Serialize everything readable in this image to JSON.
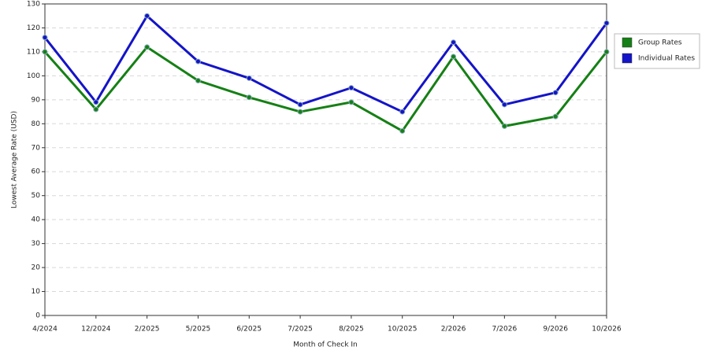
{
  "chart_data": {
    "type": "line",
    "x_label": "Month of Check In",
    "y_label": "Lowest Average Rate (USD)",
    "categories": [
      "4/2024",
      "12/2024",
      "2/2025",
      "5/2025",
      "6/2025",
      "7/2025",
      "8/2025",
      "10/2025",
      "2/2026",
      "7/2026",
      "9/2026",
      "10/2026"
    ],
    "series": [
      {
        "name": "Group Rates",
        "color": "#158015",
        "values": [
          110,
          86,
          112,
          98,
          91,
          85,
          89,
          77,
          108,
          79,
          83,
          110
        ]
      },
      {
        "name": "Individual Rates",
        "color": "#1414c8",
        "values": [
          116,
          89,
          125,
          106,
          99,
          88,
          95,
          85,
          114,
          88,
          93,
          122
        ]
      }
    ],
    "ylim": [
      0,
      130
    ],
    "yticks": [
      0,
      10,
      20,
      30,
      40,
      50,
      60,
      70,
      80,
      90,
      100,
      110,
      120,
      130
    ],
    "grid": true,
    "legend": "right"
  }
}
